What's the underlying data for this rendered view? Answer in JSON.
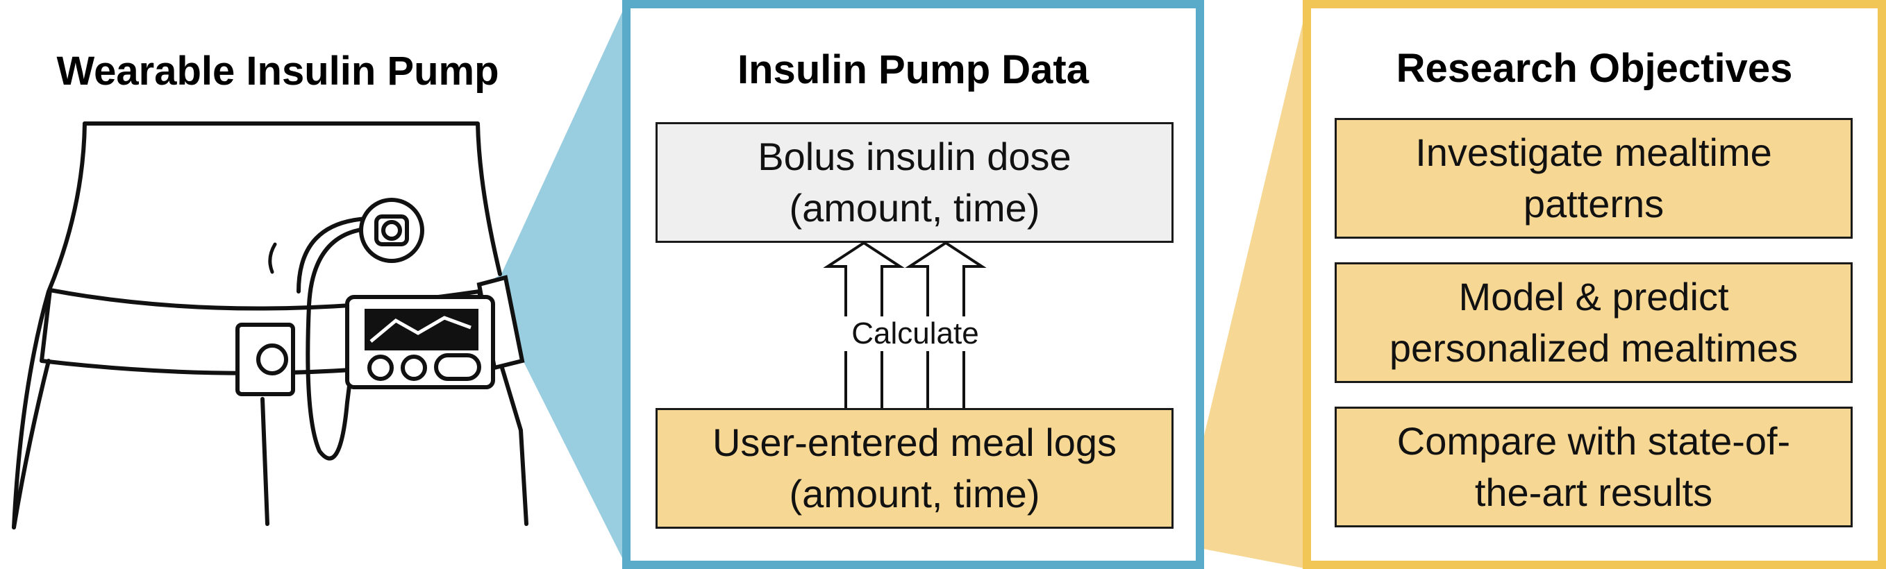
{
  "left": {
    "title": "Wearable Insulin Pump"
  },
  "middle": {
    "title": "Insulin Pump Data",
    "bolus_box": {
      "line1": "Bolus insulin dose",
      "line2": "(amount, time)"
    },
    "calculate_label": "Calculate",
    "meal_box": {
      "line1": "User-entered meal logs",
      "line2": "(amount, time)"
    }
  },
  "right": {
    "title": "Research Objectives",
    "objectives": [
      {
        "line1": "Investigate mealtime",
        "line2": "patterns"
      },
      {
        "line1": "Model & predict",
        "line2": "personalized mealtimes"
      },
      {
        "line1": "Compare with state-of-",
        "line2": "the-art results"
      }
    ]
  },
  "colors": {
    "blue_frame": "#5aabc9",
    "blue_fill": "#99cde0",
    "yellow_frame": "#f2c656",
    "yellow_fill": "#f6d793",
    "grey_fill": "#efefef"
  },
  "icons": [
    "torso-illustration",
    "insulin-pump-icon",
    "infusion-site-icon",
    "up-arrow-icon"
  ]
}
